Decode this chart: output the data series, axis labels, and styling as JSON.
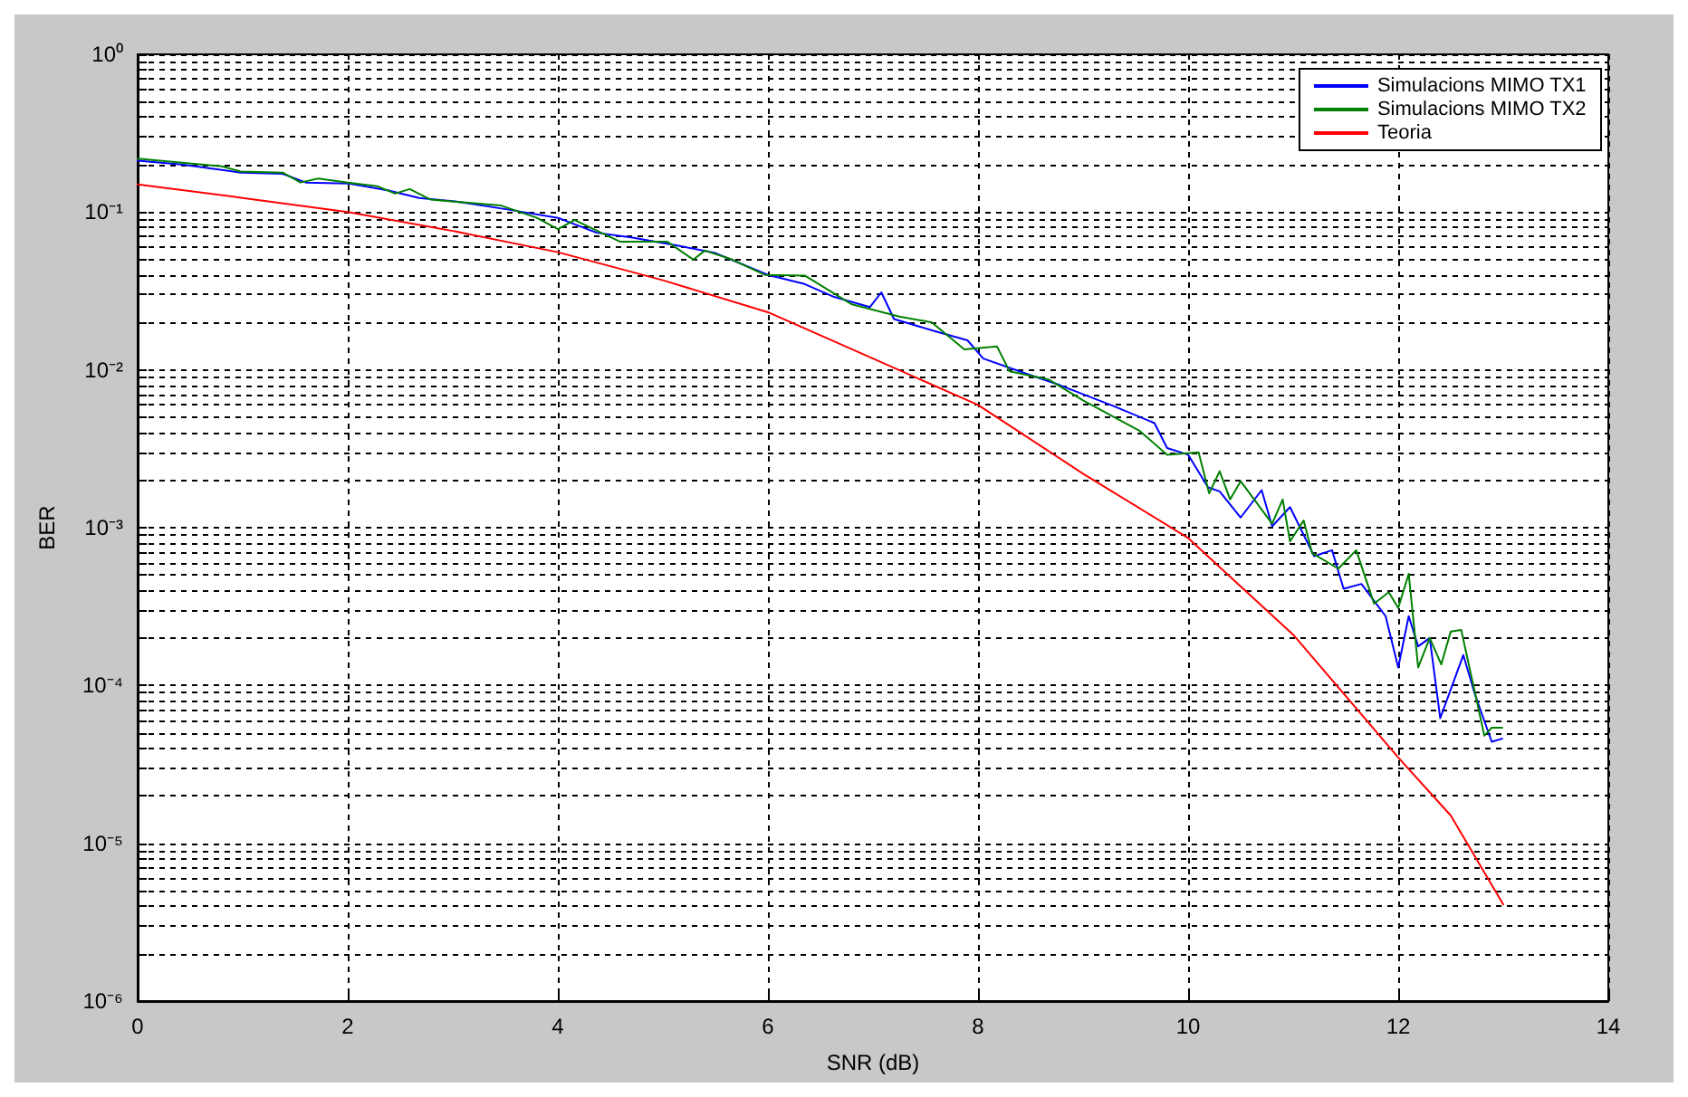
{
  "chart_data": {
    "type": "line",
    "xlabel": "SNR (dB)",
    "ylabel": "BER",
    "log": "y",
    "grid": true,
    "legend": "top right",
    "marker": "none",
    "line_style": "solid",
    "xlim": [
      0,
      14
    ],
    "xticks": [
      0,
      2,
      4,
      6,
      8,
      10,
      12,
      14
    ],
    "ylim": [
      1e-06,
      1
    ],
    "yticks": [
      {
        "value": 1e-06,
        "label": "10⁻⁶"
      },
      {
        "value": 2e-06,
        "label": null
      },
      {
        "value": 3e-06,
        "label": null
      },
      {
        "value": 4e-06,
        "label": null
      },
      {
        "value": 5e-06,
        "label": null
      },
      {
        "value": 6e-06,
        "label": null
      },
      {
        "value": 7e-06,
        "label": null
      },
      {
        "value": 8e-06,
        "label": null
      },
      {
        "value": 9e-06,
        "label": null
      },
      {
        "value": 1e-05,
        "label": "10⁻⁵"
      },
      {
        "value": 2e-05,
        "label": null
      },
      {
        "value": 3e-05,
        "label": null
      },
      {
        "value": 4e-05,
        "label": null
      },
      {
        "value": 5e-05,
        "label": null
      },
      {
        "value": 6e-05,
        "label": null
      },
      {
        "value": 7e-05,
        "label": null
      },
      {
        "value": 8e-05,
        "label": null
      },
      {
        "value": 9e-05,
        "label": null
      },
      {
        "value": 0.0001,
        "label": "10⁻⁴"
      },
      {
        "value": 0.0002,
        "label": null
      },
      {
        "value": 0.0003,
        "label": null
      },
      {
        "value": 0.0004,
        "label": null
      },
      {
        "value": 0.0005,
        "label": null
      },
      {
        "value": 0.0006,
        "label": null
      },
      {
        "value": 0.0007,
        "label": null
      },
      {
        "value": 0.0008,
        "label": null
      },
      {
        "value": 0.0009,
        "label": null
      },
      {
        "value": 0.001,
        "label": "10⁻³"
      },
      {
        "value": 0.002,
        "label": null
      },
      {
        "value": 0.003,
        "label": null
      },
      {
        "value": 0.004,
        "label": null
      },
      {
        "value": 0.005,
        "label": null
      },
      {
        "value": 0.006,
        "label": null
      },
      {
        "value": 0.007,
        "label": null
      },
      {
        "value": 0.008,
        "label": null
      },
      {
        "value": 0.009,
        "label": null
      },
      {
        "value": 0.01,
        "label": "10⁻²"
      },
      {
        "value": 0.02,
        "label": null
      },
      {
        "value": 0.03,
        "label": null
      },
      {
        "value": 0.04,
        "label": null
      },
      {
        "value": 0.05,
        "label": null
      },
      {
        "value": 0.06,
        "label": null
      },
      {
        "value": 0.07,
        "label": null
      },
      {
        "value": 0.08,
        "label": null
      },
      {
        "value": 0.09,
        "label": null
      },
      {
        "value": 0.1,
        "label": "10⁻¹"
      },
      {
        "value": 0.2,
        "label": null
      },
      {
        "value": 0.3,
        "label": null
      },
      {
        "value": 0.4,
        "label": null
      },
      {
        "value": 0.5,
        "label": null
      },
      {
        "value": 0.6,
        "label": null
      },
      {
        "value": 0.7,
        "label": null
      },
      {
        "value": 0.8,
        "label": null
      },
      {
        "value": 0.9,
        "label": null
      },
      {
        "value": 1,
        "label": "10⁰"
      }
    ],
    "series": [
      {
        "name": "Simulacions MIMO TX1",
        "color": "#0000ff",
        "x": [
          0,
          0.42,
          0.98,
          1.38,
          1.6,
          2.0,
          2.39,
          2.68,
          3.02,
          3.52,
          4.0,
          4.37,
          4.71,
          5.16,
          5.5,
          6.0,
          6.35,
          6.63,
          6.97,
          7.08,
          7.2,
          7.6,
          7.9,
          8.05,
          8.45,
          8.78,
          9.29,
          9.68,
          9.8,
          10.0,
          10.19,
          10.3,
          10.5,
          10.7,
          10.8,
          10.97,
          11.2,
          11.37,
          11.48,
          11.65,
          11.88,
          12.0,
          12.1,
          12.19,
          12.3,
          12.4,
          12.62,
          12.73,
          12.89,
          12.99
        ],
        "values": [
          0.212,
          0.2,
          0.178,
          0.175,
          0.154,
          0.152,
          0.137,
          0.123,
          0.117,
          0.104,
          0.092,
          0.074,
          0.069,
          0.061,
          0.055,
          0.04,
          0.035,
          0.029,
          0.025,
          0.031,
          0.021,
          0.0175,
          0.0154,
          0.0118,
          0.0095,
          0.008,
          0.0059,
          0.0046,
          0.0032,
          0.0029,
          0.0018,
          0.0017,
          0.00116,
          0.00173,
          0.00102,
          0.00135,
          0.00066,
          0.00072,
          0.00041,
          0.00044,
          0.000275,
          0.00013,
          0.000275,
          0.000177,
          0.0002,
          6.2e-05,
          0.000156,
          8.8e-05,
          4.4e-05,
          4.6e-05
        ]
      },
      {
        "name": "Simulacions MIMO TX2",
        "color": "#008000",
        "x": [
          0,
          0.8,
          0.98,
          1.38,
          1.55,
          1.72,
          2.0,
          2.28,
          2.45,
          2.59,
          2.79,
          3.46,
          3.8,
          4.0,
          4.16,
          4.59,
          5.04,
          5.29,
          5.4,
          5.66,
          5.97,
          6.35,
          6.8,
          7.25,
          7.56,
          7.87,
          8.18,
          8.3,
          8.67,
          9.0,
          9.54,
          9.8,
          10.1,
          10.2,
          10.3,
          10.4,
          10.5,
          10.8,
          10.9,
          10.97,
          11.1,
          11.18,
          11.43,
          11.6,
          11.77,
          11.91,
          12.0,
          12.1,
          12.19,
          12.3,
          12.41,
          12.5,
          12.6,
          12.82,
          12.89,
          12.99
        ],
        "values": [
          0.218,
          0.195,
          0.181,
          0.178,
          0.154,
          0.163,
          0.154,
          0.146,
          0.131,
          0.14,
          0.12,
          0.11,
          0.092,
          0.078,
          0.089,
          0.065,
          0.065,
          0.05,
          0.057,
          0.05,
          0.04,
          0.0396,
          0.026,
          0.0218,
          0.02,
          0.0135,
          0.0141,
          0.0098,
          0.0087,
          0.0064,
          0.0041,
          0.0029,
          0.003,
          0.00165,
          0.00228,
          0.00151,
          0.00197,
          0.00106,
          0.00151,
          0.00082,
          0.00111,
          0.00069,
          0.00055,
          0.00072,
          0.00033,
          0.00039,
          0.00031,
          0.00051,
          0.00013,
          0.0002,
          0.000136,
          0.00022,
          0.000225,
          4.8e-05,
          5.4e-05,
          5.4e-05
        ]
      },
      {
        "name": "Teoria",
        "color": "#ff0000",
        "x": [
          0,
          1,
          2,
          3,
          4,
          5,
          6,
          7,
          8,
          9,
          10,
          11,
          12,
          12.5,
          13
        ],
        "values": [
          0.15,
          0.123,
          0.1,
          0.076,
          0.0557,
          0.037,
          0.0232,
          0.0118,
          0.006,
          0.0022,
          0.00086,
          0.00021,
          3.5e-05,
          1.5e-05,
          4.1e-06
        ]
      }
    ]
  }
}
